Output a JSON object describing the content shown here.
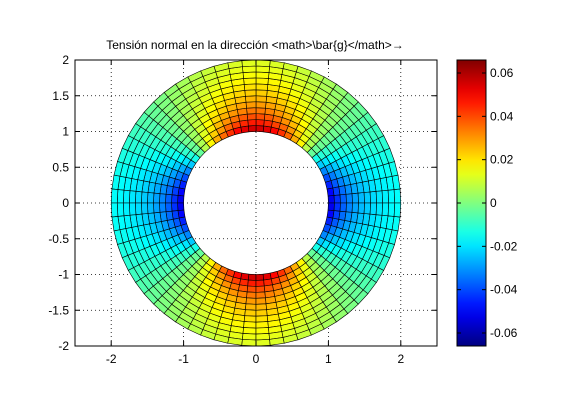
{
  "chart_data": {
    "type": "heatmap",
    "title": "Tensión normal en la dirección <math>\\bar{g}</math>→",
    "xlabel": "",
    "ylabel": "",
    "xlim": [
      -2.5,
      2.5
    ],
    "ylim": [
      -2,
      2
    ],
    "x_ticks": [
      -2,
      -1,
      0,
      1,
      2
    ],
    "x_tick_labels": [
      "-2",
      "-1",
      "0",
      "1",
      "2"
    ],
    "y_ticks": [
      -2,
      -1.5,
      -1,
      -0.5,
      0,
      0.5,
      1,
      1.5,
      2
    ],
    "y_tick_labels": [
      "-2",
      "-1.5",
      "-1",
      "-0.5",
      "0",
      "0.5",
      "1",
      "1.5",
      "2"
    ],
    "grid": true,
    "annulus": {
      "inner_radius": 1,
      "outer_radius": 2,
      "radial_divisions": 12,
      "angular_divisions": 64
    },
    "color_range": [
      -0.066,
      0.066
    ],
    "colorbar_ticks": [
      0.06,
      0.04,
      0.02,
      0,
      -0.02,
      -0.04,
      -0.06
    ],
    "colorbar_tick_labels": [
      "0.06",
      "0.04",
      "0.02",
      "0",
      "-0.02",
      "-0.04",
      "-0.06"
    ],
    "colormap": "jet"
  }
}
